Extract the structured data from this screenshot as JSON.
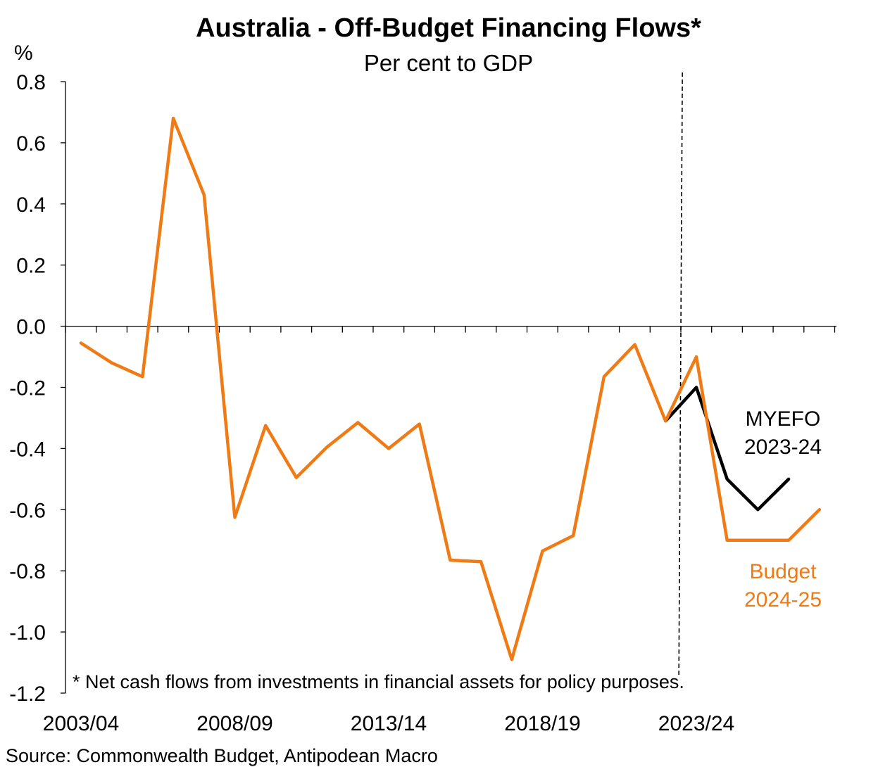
{
  "chart_data": {
    "type": "line",
    "title": "Australia - Off-Budget Financing Flows*",
    "subtitle": "Per cent to GDP",
    "ylabel": "%",
    "ylim": [
      -1.2,
      0.8
    ],
    "yticks": [
      "0.8",
      "0.6",
      "0.4",
      "0.2",
      "0.0",
      "-0.2",
      "-0.4",
      "-0.6",
      "-0.8",
      "-1.0",
      "-1.2"
    ],
    "x_tick_labels": [
      "2003/04",
      "2008/09",
      "2013/14",
      "2018/19",
      "2023/24"
    ],
    "x": [
      "2003/04",
      "2004/05",
      "2005/06",
      "2006/07",
      "2007/08",
      "2008/09",
      "2009/10",
      "2010/11",
      "2011/12",
      "2012/13",
      "2013/14",
      "2014/15",
      "2015/16",
      "2016/17",
      "2017/18",
      "2018/19",
      "2019/20",
      "2020/21",
      "2021/22",
      "2022/23",
      "2023/24",
      "2024/25",
      "2025/26",
      "2026/27",
      "2027/28"
    ],
    "forecast_divider_after": "2022/23",
    "series": [
      {
        "name": "MYEFO 2023-24",
        "color": "#000000",
        "label_lines": [
          "MYEFO",
          "2023-24"
        ],
        "values": [
          null,
          null,
          null,
          null,
          null,
          null,
          null,
          null,
          null,
          null,
          null,
          null,
          null,
          null,
          null,
          null,
          null,
          null,
          null,
          -0.31,
          -0.2,
          -0.5,
          -0.6,
          -0.5,
          null
        ]
      },
      {
        "name": "Budget 2024-25",
        "color": "#f07a14",
        "label_lines": [
          "Budget",
          "2024-25"
        ],
        "values": [
          -0.055,
          -0.12,
          -0.165,
          0.68,
          0.43,
          -0.625,
          -0.325,
          -0.495,
          -0.395,
          -0.315,
          -0.4,
          -0.32,
          -0.765,
          -0.77,
          -1.09,
          -0.735,
          -0.685,
          -0.165,
          -0.06,
          -0.31,
          -0.1,
          -0.7,
          -0.7,
          -0.7,
          -0.6
        ]
      }
    ],
    "footnote": "* Net cash flows from investments in financial assets for policy purposes.",
    "source": "Source: Commonwealth Budget, Antipodean Macro"
  }
}
